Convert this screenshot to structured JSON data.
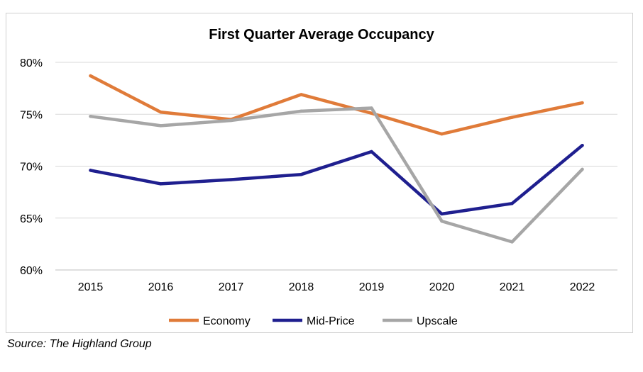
{
  "chart_data": {
    "type": "line",
    "title": "First Quarter Average Occupancy",
    "categories": [
      "2015",
      "2016",
      "2017",
      "2018",
      "2019",
      "2020",
      "2021",
      "2022"
    ],
    "ylim": [
      60,
      80
    ],
    "yticks": [
      60,
      65,
      70,
      75,
      80
    ],
    "ytick_labels": [
      "60%",
      "65%",
      "70%",
      "75%",
      "80%"
    ],
    "xlabel": "",
    "ylabel": "",
    "grid": "horizontal",
    "legend_position": "bottom",
    "series": [
      {
        "name": "Economy",
        "color": "#E07B39",
        "values": [
          78.7,
          75.2,
          74.5,
          76.9,
          75.1,
          73.1,
          74.7,
          76.1
        ]
      },
      {
        "name": "Mid-Price",
        "color": "#1F1F8F",
        "values": [
          69.6,
          68.3,
          68.7,
          69.2,
          71.4,
          65.4,
          66.4,
          72.0
        ]
      },
      {
        "name": "Upscale",
        "color": "#A6A6A6",
        "values": [
          74.8,
          73.9,
          74.4,
          75.3,
          75.6,
          64.7,
          62.7,
          69.7
        ]
      }
    ]
  },
  "source": "Source: The Highland Group"
}
